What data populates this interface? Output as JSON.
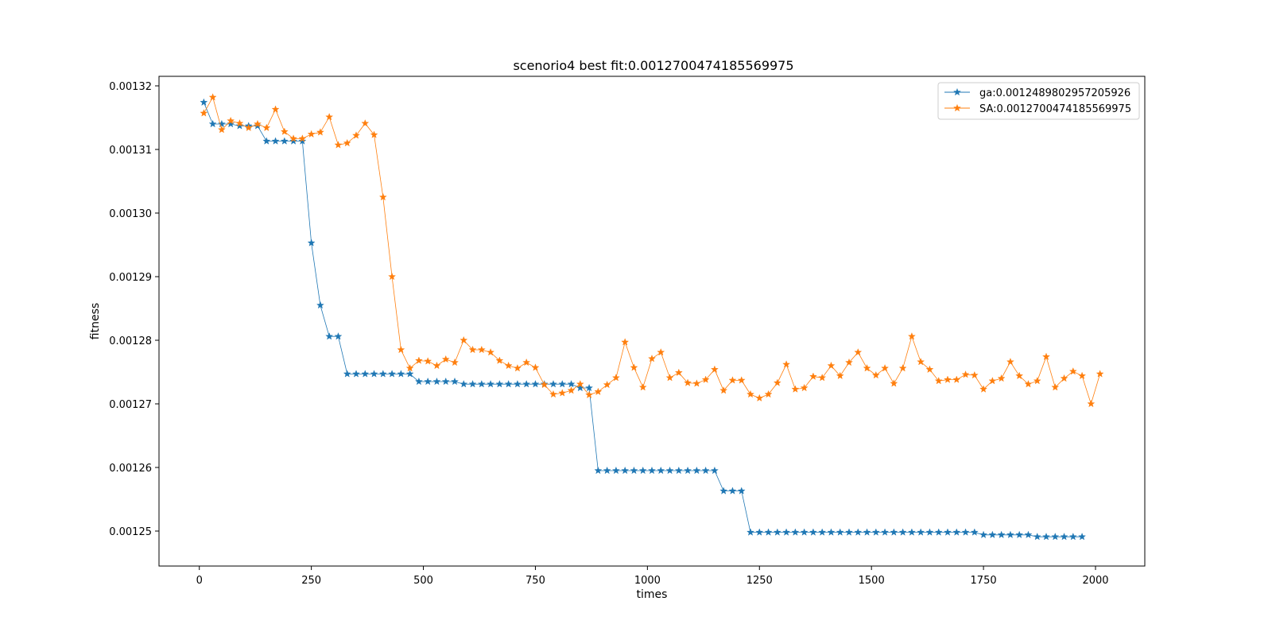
{
  "chart_data": {
    "type": "line",
    "title": "scenorio4 best fit:0.0012700474185569975",
    "xlabel": "times",
    "ylabel": "fitness",
    "xlim": [
      -90,
      2110
    ],
    "ylim": [
      0.0012445,
      0.0013215
    ],
    "xticks": [
      0,
      250,
      500,
      750,
      1000,
      1250,
      1500,
      1750,
      2000
    ],
    "yticks": [
      0.00125,
      0.00126,
      0.00127,
      0.00128,
      0.00129,
      0.0013,
      0.00131,
      0.00132
    ],
    "ytick_labels": [
      "0.00125",
      "0.00126",
      "0.00127",
      "0.00128",
      "0.00129",
      "0.00130",
      "0.00131",
      "0.00132"
    ],
    "grid": false,
    "legend": "top-right",
    "marker": "star",
    "series": [
      {
        "name": "ga:0.0012489802957205926",
        "color": "#1f77b4",
        "x": [
          10,
          30,
          50,
          70,
          90,
          110,
          130,
          150,
          170,
          190,
          210,
          230,
          250,
          270,
          290,
          310,
          330,
          350,
          370,
          390,
          410,
          430,
          450,
          470,
          490,
          510,
          530,
          550,
          570,
          590,
          610,
          630,
          650,
          670,
          690,
          710,
          730,
          750,
          770,
          790,
          810,
          830,
          850,
          870,
          890,
          910,
          930,
          950,
          970,
          990,
          1010,
          1030,
          1050,
          1070,
          1090,
          1110,
          1130,
          1150,
          1170,
          1190,
          1210,
          1230,
          1250,
          1270,
          1290,
          1310,
          1330,
          1350,
          1370,
          1390,
          1410,
          1430,
          1450,
          1470,
          1490,
          1510,
          1530,
          1550,
          1570,
          1590,
          1610,
          1630,
          1650,
          1670,
          1690,
          1710,
          1730,
          1750,
          1770,
          1790,
          1810,
          1830,
          1850,
          1870,
          1890,
          1910,
          1930,
          1950,
          1970
        ],
        "y": [
          0.0013174,
          0.001314,
          0.001314,
          0.001314,
          0.0013137,
          0.0013137,
          0.0013137,
          0.0013113,
          0.0013113,
          0.0013113,
          0.0013113,
          0.0013113,
          0.0012953,
          0.0012855,
          0.0012806,
          0.0012806,
          0.0012747,
          0.0012747,
          0.0012747,
          0.0012747,
          0.0012747,
          0.0012747,
          0.0012747,
          0.0012747,
          0.0012735,
          0.0012735,
          0.0012735,
          0.0012735,
          0.0012735,
          0.0012731,
          0.0012731,
          0.0012731,
          0.0012731,
          0.0012731,
          0.0012731,
          0.0012731,
          0.0012731,
          0.0012731,
          0.0012731,
          0.0012731,
          0.0012731,
          0.0012731,
          0.0012725,
          0.0012725,
          0.0012595,
          0.0012595,
          0.0012595,
          0.0012595,
          0.0012595,
          0.0012595,
          0.0012595,
          0.0012595,
          0.0012595,
          0.0012595,
          0.0012595,
          0.0012595,
          0.0012595,
          0.0012595,
          0.0012563,
          0.0012563,
          0.0012563,
          0.0012498,
          0.0012498,
          0.0012498,
          0.0012498,
          0.0012498,
          0.0012498,
          0.0012498,
          0.0012498,
          0.0012498,
          0.0012498,
          0.0012498,
          0.0012498,
          0.0012498,
          0.0012498,
          0.0012498,
          0.0012498,
          0.0012498,
          0.0012498,
          0.0012498,
          0.0012498,
          0.0012498,
          0.0012498,
          0.0012498,
          0.0012498,
          0.0012498,
          0.0012498,
          0.0012494,
          0.0012494,
          0.0012494,
          0.0012494,
          0.0012494,
          0.0012494,
          0.0012491,
          0.0012491,
          0.0012491,
          0.0012491,
          0.0012491,
          0.0012491
        ]
      },
      {
        "name": "SA:0.0012700474185569975",
        "color": "#ff7f0e",
        "x": [
          10,
          30,
          50,
          70,
          90,
          110,
          130,
          150,
          170,
          190,
          210,
          230,
          250,
          270,
          290,
          310,
          330,
          350,
          370,
          390,
          410,
          430,
          450,
          470,
          490,
          510,
          530,
          550,
          570,
          590,
          610,
          630,
          650,
          670,
          690,
          710,
          730,
          750,
          770,
          790,
          810,
          830,
          850,
          870,
          890,
          910,
          930,
          950,
          970,
          990,
          1010,
          1030,
          1050,
          1070,
          1090,
          1110,
          1130,
          1150,
          1170,
          1190,
          1210,
          1230,
          1250,
          1270,
          1290,
          1310,
          1330,
          1350,
          1370,
          1390,
          1410,
          1430,
          1450,
          1470,
          1490,
          1510,
          1530,
          1550,
          1570,
          1590,
          1610,
          1630,
          1650,
          1670,
          1690,
          1710,
          1730,
          1750,
          1770,
          1790,
          1810,
          1830,
          1850,
          1870,
          1890,
          1910,
          1930,
          1950,
          1970,
          1990,
          2010
        ],
        "y": [
          0.0013157,
          0.0013182,
          0.0013131,
          0.0013145,
          0.0013141,
          0.0013134,
          0.001314,
          0.0013134,
          0.0013163,
          0.0013128,
          0.0013117,
          0.0013117,
          0.0013124,
          0.0013127,
          0.0013151,
          0.0013107,
          0.001311,
          0.0013122,
          0.0013141,
          0.0013123,
          0.0013025,
          0.00129,
          0.0012785,
          0.0012756,
          0.0012768,
          0.0012767,
          0.001276,
          0.001277,
          0.0012765,
          0.00128,
          0.0012785,
          0.0012785,
          0.0012781,
          0.0012768,
          0.001276,
          0.0012756,
          0.0012765,
          0.0012757,
          0.001273,
          0.0012715,
          0.0012717,
          0.0012721,
          0.0012731,
          0.0012714,
          0.0012719,
          0.001273,
          0.0012741,
          0.0012797,
          0.0012757,
          0.0012726,
          0.0012771,
          0.0012781,
          0.0012741,
          0.0012749,
          0.0012733,
          0.0012732,
          0.0012738,
          0.0012754,
          0.0012721,
          0.0012737,
          0.0012737,
          0.0012715,
          0.0012709,
          0.0012715,
          0.0012733,
          0.0012762,
          0.0012723,
          0.0012725,
          0.0012743,
          0.0012741,
          0.001276,
          0.0012744,
          0.0012765,
          0.0012781,
          0.0012756,
          0.0012745,
          0.0012756,
          0.0012732,
          0.0012756,
          0.0012806,
          0.0012766,
          0.0012754,
          0.0012736,
          0.0012738,
          0.0012738,
          0.0012746,
          0.0012745,
          0.0012723,
          0.0012736,
          0.001274,
          0.0012766,
          0.0012744,
          0.0012731,
          0.0012736,
          0.0012774,
          0.0012726,
          0.001274,
          0.0012751,
          0.0012744,
          0.00127,
          0.0012747
        ]
      }
    ]
  }
}
